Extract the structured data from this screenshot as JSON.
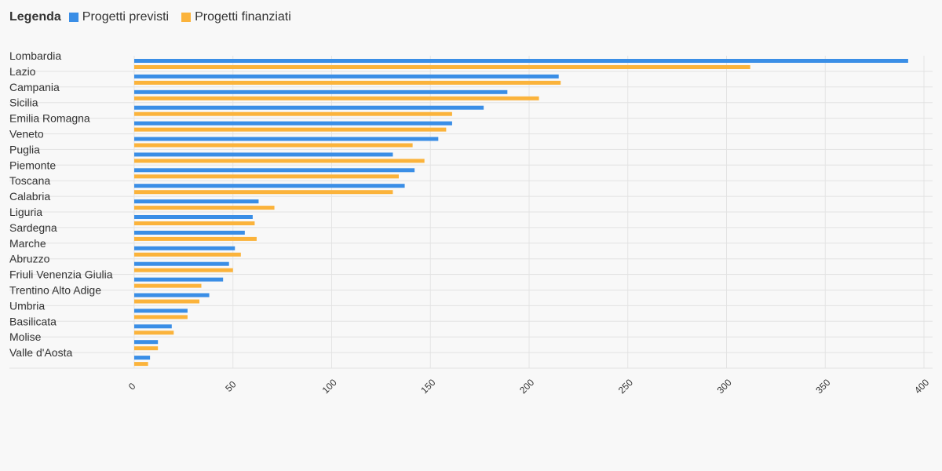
{
  "legend": {
    "title": "Legenda",
    "items": [
      {
        "label": "Progetti previsti",
        "color": "#3a8ee6"
      },
      {
        "label": "Progetti finanziati",
        "color": "#fbb33b"
      }
    ]
  },
  "chart_data": {
    "type": "bar",
    "orientation": "horizontal",
    "categories": [
      "Lombardia",
      "Lazio",
      "Campania",
      "Sicilia",
      "Emilia Romagna",
      "Veneto",
      "Puglia",
      "Piemonte",
      "Toscana",
      "Calabria",
      "Liguria",
      "Sardegna",
      "Marche",
      "Abruzzo",
      "Friuli Venenzia Giulia",
      "Trentino Alto Adige",
      "Umbria",
      "Basilicata",
      "Molise",
      "Valle d'Aosta"
    ],
    "series": [
      {
        "name": "Progetti previsti",
        "color": "#3a8ee6",
        "values": [
          392,
          215,
          189,
          177,
          161,
          154,
          131,
          142,
          137,
          63,
          60,
          56,
          51,
          48,
          45,
          38,
          27,
          19,
          12,
          8
        ]
      },
      {
        "name": "Progetti finanziati",
        "color": "#fbb33b",
        "values": [
          312,
          216,
          205,
          161,
          158,
          141,
          147,
          134,
          131,
          71,
          61,
          62,
          54,
          50,
          34,
          33,
          27,
          20,
          12,
          7
        ]
      }
    ],
    "xlim": [
      0,
      400
    ],
    "xticks": [
      "0",
      "50",
      "100",
      "150",
      "200",
      "250",
      "300",
      "350",
      "400"
    ],
    "grid": true,
    "legend_position": "top-left"
  }
}
